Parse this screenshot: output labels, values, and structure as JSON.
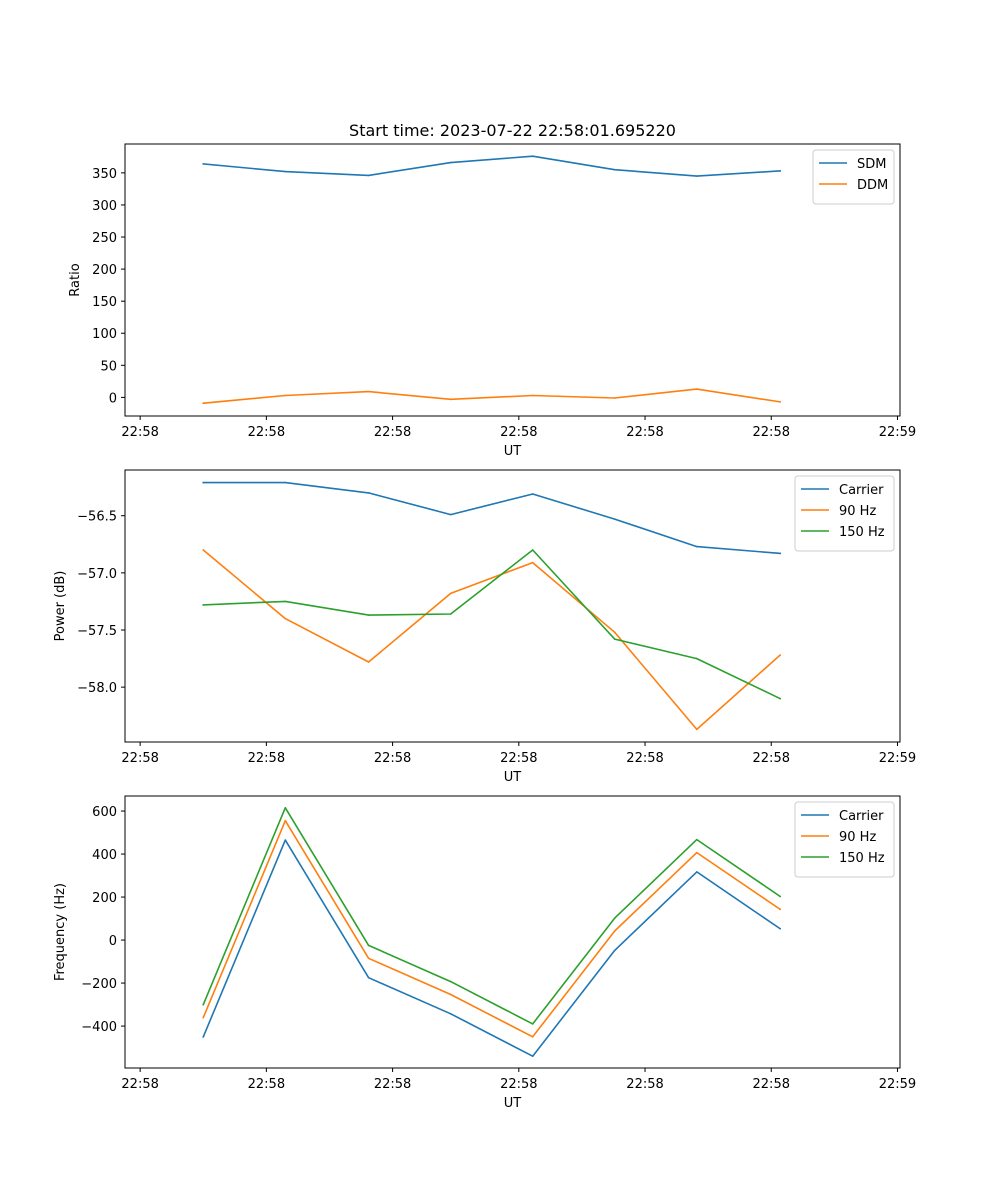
{
  "chart_data": [
    {
      "type": "line",
      "title": "Start time: 2023-07-22 22:58:01.695220",
      "xlabel": "UT",
      "ylabel": "Ratio",
      "x_tick_labels": [
        "22:58",
        "22:58",
        "22:58",
        "22:58",
        "22:58",
        "22:58",
        "22:59"
      ],
      "x_ticks": [
        0,
        1,
        2,
        3,
        4,
        5,
        6
      ],
      "xlim": [
        -0.12,
        6.02
      ],
      "ylim": [
        -29,
        395
      ],
      "y_ticks": [
        0,
        50,
        100,
        150,
        200,
        250,
        300,
        350
      ],
      "x": [
        0.5,
        1.15,
        1.81,
        2.46,
        3.11,
        3.76,
        4.41,
        5.07
      ],
      "series": [
        {
          "name": "SDM",
          "color": "#1f77b4",
          "values": [
            364,
            352,
            346,
            366,
            376,
            355,
            345,
            353
          ]
        },
        {
          "name": "DDM",
          "color": "#ff7f0e",
          "values": [
            -9,
            3,
            9,
            -3,
            3,
            -1,
            13,
            -7
          ]
        }
      ],
      "legend": "top-right"
    },
    {
      "type": "line",
      "title": "",
      "xlabel": "UT",
      "ylabel": "Power (dB)",
      "x_tick_labels": [
        "22:58",
        "22:58",
        "22:58",
        "22:58",
        "22:58",
        "22:58",
        "22:59"
      ],
      "x_ticks": [
        0,
        1,
        2,
        3,
        4,
        5,
        6
      ],
      "xlim": [
        -0.12,
        6.02
      ],
      "ylim": [
        -58.48,
        -56.1
      ],
      "y_ticks": [
        -58.0,
        -57.5,
        -57.0,
        -56.5
      ],
      "y_tick_labels": [
        "−58.0",
        "−57.5",
        "−57.0",
        "−56.5"
      ],
      "x": [
        0.5,
        1.15,
        1.81,
        2.46,
        3.11,
        3.76,
        4.41,
        5.07
      ],
      "series": [
        {
          "name": "Carrier",
          "color": "#1f77b4",
          "values": [
            -56.21,
            -56.21,
            -56.3,
            -56.49,
            -56.31,
            -56.53,
            -56.77,
            -56.83
          ]
        },
        {
          "name": "90 Hz",
          "color": "#ff7f0e",
          "values": [
            -56.8,
            -57.4,
            -57.78,
            -57.18,
            -56.91,
            -57.52,
            -58.37,
            -57.72
          ]
        },
        {
          "name": "150 Hz",
          "color": "#2ca02c",
          "values": [
            -57.28,
            -57.25,
            -57.37,
            -57.36,
            -56.8,
            -57.58,
            -57.75,
            -58.1
          ]
        }
      ],
      "legend": "top-right"
    },
    {
      "type": "line",
      "title": "",
      "xlabel": "UT",
      "ylabel": "Frequency (Hz)",
      "x_tick_labels": [
        "22:58",
        "22:58",
        "22:58",
        "22:58",
        "22:58",
        "22:58",
        "22:59"
      ],
      "x_ticks": [
        0,
        1,
        2,
        3,
        4,
        5,
        6
      ],
      "xlim": [
        -0.12,
        6.02
      ],
      "ylim": [
        -595,
        670
      ],
      "y_ticks": [
        -400,
        -200,
        0,
        200,
        400,
        600
      ],
      "y_tick_labels": [
        "−400",
        "−200",
        "0",
        "200",
        "400",
        "600"
      ],
      "x": [
        0.5,
        1.15,
        1.81,
        2.46,
        3.11,
        3.76,
        4.41,
        5.07
      ],
      "series": [
        {
          "name": "Carrier",
          "color": "#1f77b4",
          "values": [
            -450,
            465,
            -175,
            -343,
            -540,
            -48,
            317,
            53
          ]
        },
        {
          "name": "90 Hz",
          "color": "#ff7f0e",
          "values": [
            -360,
            555,
            -85,
            -253,
            -450,
            42,
            407,
            143
          ]
        },
        {
          "name": "150 Hz",
          "color": "#2ca02c",
          "values": [
            -300,
            615,
            -25,
            -193,
            -390,
            102,
            467,
            203
          ]
        }
      ],
      "legend": "top-right"
    }
  ]
}
